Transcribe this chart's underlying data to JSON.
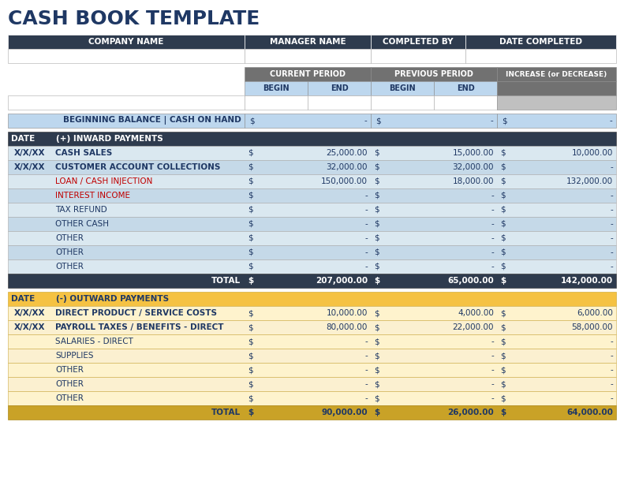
{
  "title": "CASH BOOK TEMPLATE",
  "title_color": "#1F3864",
  "bg_color": "#FFFFFF",
  "dark_navy": "#2E3B4E",
  "gray_header": "#717171",
  "light_blue_header": "#BDD7EE",
  "blue_row1": "#DAE8F0",
  "blue_row2": "#C5D9E8",
  "yellow_header": "#F5C243",
  "yellow_row1": "#FEF3CD",
  "yellow_row2": "#FBE8A6",
  "dark_yellow_total": "#C9A227",
  "red_text": "#C00000",
  "white": "#FFFFFF",
  "navy_text": "#1F3864",
  "header_row1_labels": [
    "COMPANY NAME",
    "MANAGER NAME",
    "COMPLETED BY",
    "DATE COMPLETED"
  ],
  "sub_period_labels": [
    "BEGIN",
    "END",
    "BEGIN",
    "END"
  ],
  "increase_label": "INCREASE (or DECREASE)",
  "balance_label": "BEGINNING BALANCE | CASH ON HAND",
  "inward_header": "(+) INWARD PAYMENTS",
  "outward_header": "(-) OUTWARD PAYMENTS",
  "date_label": "DATE",
  "inward_rows": [
    [
      "X/X/XX",
      "CASH SALES",
      "25,000.00",
      "15,000.00",
      "10,000.00",
      false
    ],
    [
      "X/X/XX",
      "CUSTOMER ACCOUNT COLLECTIONS",
      "32,000.00",
      "32,000.00",
      "-",
      false
    ],
    [
      "",
      "LOAN / CASH INJECTION",
      "150,000.00",
      "18,000.00",
      "132,000.00",
      true
    ],
    [
      "",
      "INTEREST INCOME",
      "-",
      "-",
      "-",
      true
    ],
    [
      "",
      "TAX REFUND",
      "-",
      "-",
      "-",
      false
    ],
    [
      "",
      "OTHER CASH",
      "-",
      "-",
      "-",
      false
    ],
    [
      "",
      "OTHER",
      "-",
      "-",
      "-",
      false
    ],
    [
      "",
      "OTHER",
      "-",
      "-",
      "-",
      false
    ],
    [
      "",
      "OTHER",
      "-",
      "-",
      "-",
      false
    ]
  ],
  "inward_total": [
    "207,000.00",
    "65,000.00",
    "142,000.00"
  ],
  "outward_rows": [
    [
      "X/X/XX",
      "DIRECT PRODUCT / SERVICE COSTS",
      "10,000.00",
      "4,000.00",
      "6,000.00",
      false
    ],
    [
      "X/X/XX",
      "PAYROLL TAXES / BENEFITS - DIRECT",
      "80,000.00",
      "22,000.00",
      "58,000.00",
      false
    ],
    [
      "",
      "SALARIES - DIRECT",
      "-",
      "-",
      "-",
      false
    ],
    [
      "",
      "SUPPLIES",
      "-",
      "-",
      "-",
      false
    ],
    [
      "",
      "OTHER",
      "-",
      "-",
      "-",
      false
    ],
    [
      "",
      "OTHER",
      "-",
      "-",
      "-",
      false
    ],
    [
      "",
      "OTHER",
      "-",
      "-",
      "-",
      false
    ]
  ],
  "outward_total": [
    "90,000.00",
    "26,000.00",
    "64,000.00"
  ]
}
